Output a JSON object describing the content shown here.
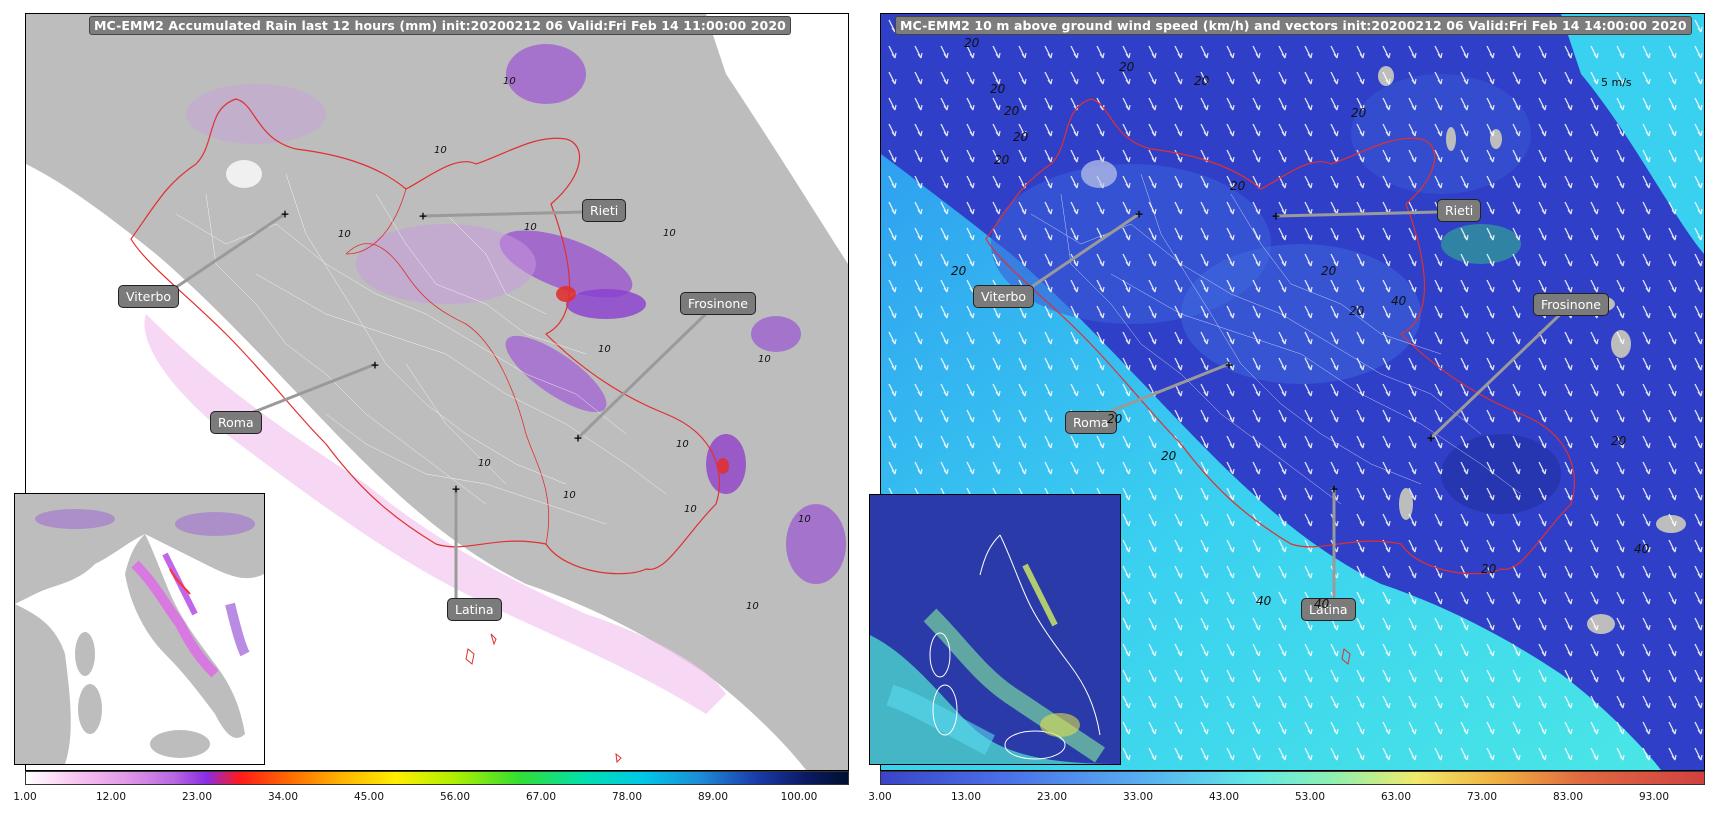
{
  "left_map": {
    "title": "MC-EMM2 Accumulated Rain last 12 hours (mm) init:20200212 06  Valid:Fri Feb 14 11:00:00 2020",
    "cities": [
      "Viterbo",
      "Rieti",
      "Frosinone",
      "Roma",
      "Latina"
    ],
    "contour_labels": [
      "10",
      "10",
      "10",
      "10",
      "10",
      "10",
      "10",
      "10",
      "10",
      "10",
      "10",
      "10",
      "10"
    ],
    "colorbar": {
      "ticks": [
        "1.00",
        "12.00",
        "23.00",
        "34.00",
        "45.00",
        "56.00",
        "67.00",
        "78.00",
        "89.00",
        "100.00"
      ]
    },
    "colors": {
      "land": "#bdbdbd",
      "sea": "#ffffff",
      "region_border": "#e03030",
      "rain_light": "#e3a6ec",
      "rain_heavy": "#8a3fd0"
    }
  },
  "right_map": {
    "title": "MC-EMM2 10 m above ground wind speed (km/h) and vectors init:20200212 06  Valid:Fri Feb 14 14:00:00 2020",
    "cities": [
      "Viterbo",
      "Rieti",
      "Frosinone",
      "Roma",
      "Latina"
    ],
    "contour_labels": [
      "20",
      "20",
      "20",
      "20",
      "20",
      "20",
      "20",
      "20",
      "20",
      "20",
      "20",
      "20",
      "20",
      "20",
      "40",
      "40",
      "40",
      "40",
      "20",
      "20"
    ],
    "vector_key": "5 m/s",
    "colorbar": {
      "ticks": [
        "3.00",
        "13.00",
        "23.00",
        "33.00",
        "43.00",
        "53.00",
        "63.00",
        "73.00",
        "83.00",
        "93.00"
      ]
    },
    "colors": {
      "land_wind": "#2f3fc7",
      "sea_wind": "#2ec8ea",
      "arrow": "#ffffff"
    }
  }
}
